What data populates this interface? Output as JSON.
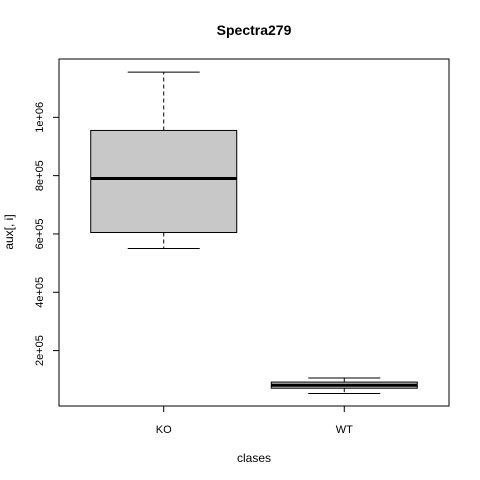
{
  "chart_data": {
    "type": "boxplot",
    "title": "Spectra279",
    "xlabel": "clases",
    "ylabel": "aux[, i]",
    "categories": [
      "KO",
      "WT"
    ],
    "boxes": [
      {
        "name": "KO",
        "whisker_low": 550000,
        "q1": 605000,
        "median": 790000,
        "q3": 955000,
        "whisker_high": 1155000
      },
      {
        "name": "WT",
        "whisker_low": 53000,
        "q1": 71000,
        "median": 81000,
        "q3": 92000,
        "whisker_high": 106000
      }
    ],
    "ylim": [
      10000,
      1200000
    ],
    "yticks": [
      200000,
      400000,
      600000,
      800000,
      1000000
    ],
    "ytick_labels": [
      "2e+05",
      "4e+05",
      "6e+05",
      "8e+05",
      "1e+06"
    ],
    "box_fill": "#c8c8c8",
    "grid": false
  }
}
